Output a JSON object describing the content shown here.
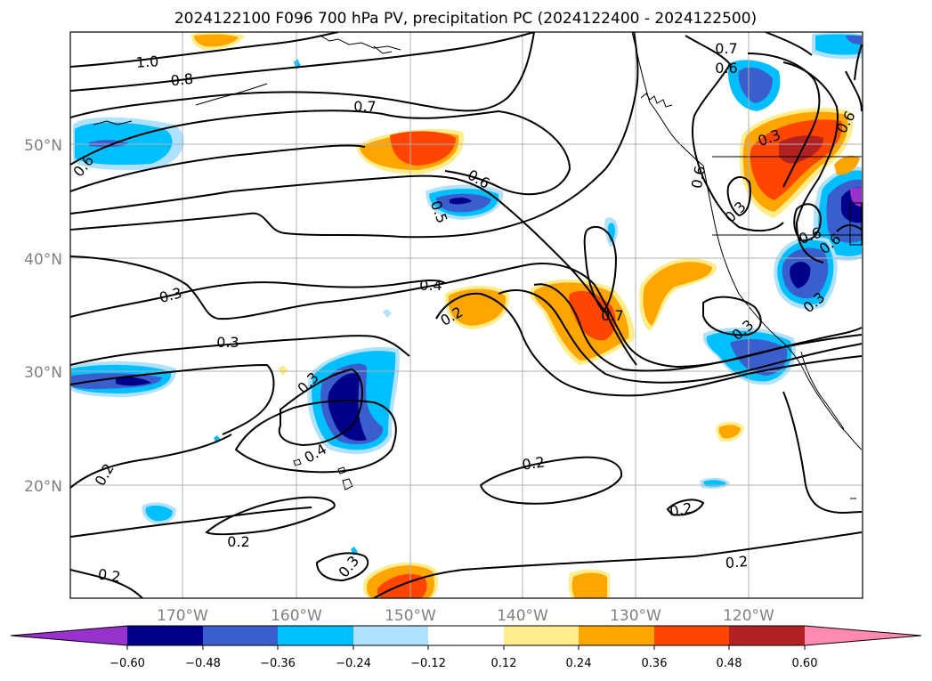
{
  "title": "2024122100 F096 700 hPa PV, precipitation PC (2024122400 - 2024122500)",
  "lat_labels": [
    "50°N",
    "40°N",
    "30°N",
    "20°N"
  ],
  "lon_labels": [
    "170°W",
    "160°W",
    "150°W",
    "140°W",
    "130°W",
    "120°W"
  ],
  "contour_labels": [
    "1.0",
    "0.8",
    "0.7",
    "0.7",
    "0.6",
    "0.6",
    "0.5",
    "0.6",
    "0.3",
    "0.3",
    "0.6",
    "0.6",
    "0.4",
    "0.3",
    "0.3",
    "0.2",
    "0.7",
    "0.3",
    "0.3",
    "0.4",
    "0.2",
    "0.2",
    "0.2",
    "0.2",
    "0.2",
    "0.3",
    "0.2",
    "0.6",
    "0.6",
    "0.3"
  ],
  "colorbar": {
    "ticks": [
      "−0.60",
      "−0.48",
      "−0.36",
      "−0.24",
      "−0.12",
      "0.12",
      "0.24",
      "0.36",
      "0.48",
      "0.60"
    ],
    "colors": [
      "#9932cc",
      "#00008b",
      "#3a5fcd",
      "#00bfff",
      "#b0e2ff",
      "#ffffff",
      "#ffec8b",
      "#ffa500",
      "#ff4500",
      "#b22222",
      "#ff89b0"
    ]
  }
}
